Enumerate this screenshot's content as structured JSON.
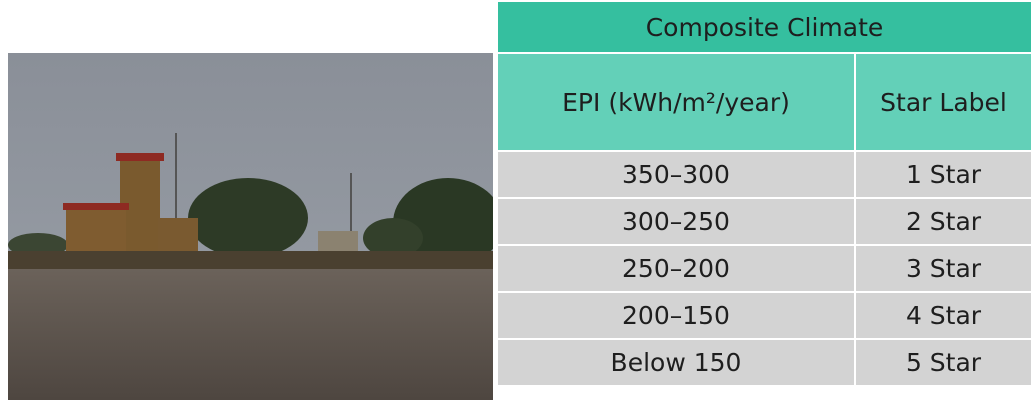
{
  "table": {
    "title": "Composite Climate",
    "header": [
      "EPI (kWh/m²/year)",
      "Star Label"
    ],
    "rows": [
      [
        "350–300",
        "1 Star"
      ],
      [
        "300–250",
        "2 Star"
      ],
      [
        "250–200",
        "3 Star"
      ],
      [
        "200–150",
        "4 Star"
      ],
      [
        "Below 150",
        "5 Star"
      ]
    ]
  }
}
